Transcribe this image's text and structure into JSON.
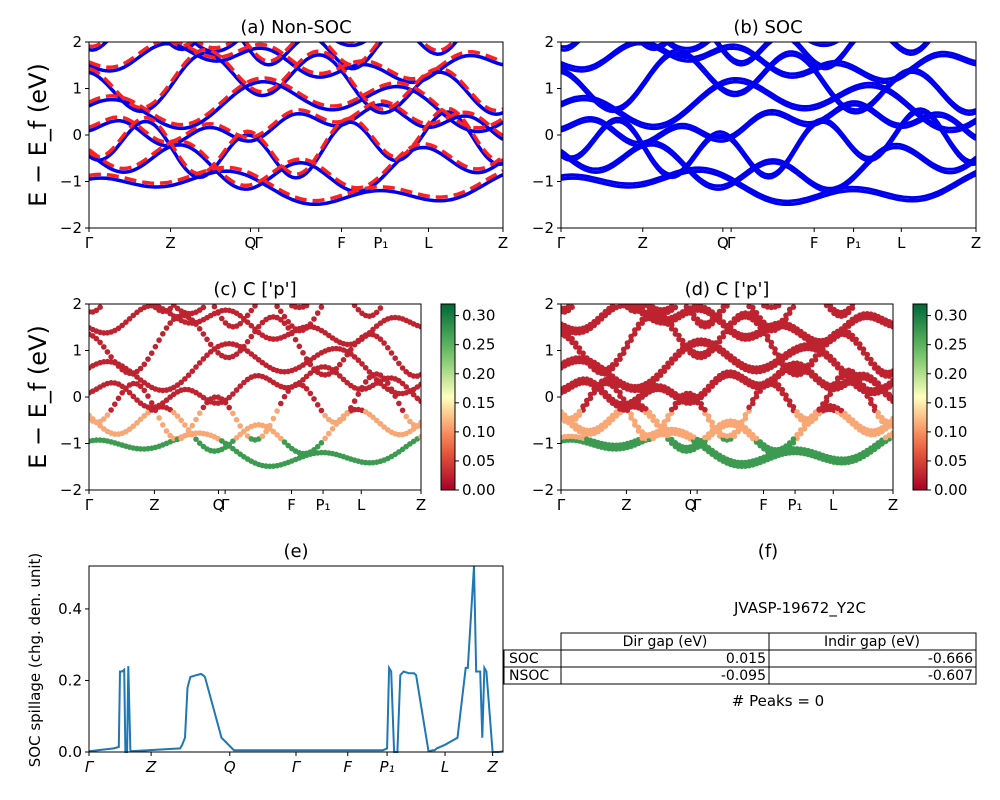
{
  "chart_data": [
    {
      "type": "line",
      "title": "(a) Non-SOC",
      "ylabel": "E − E_f (eV)",
      "ylim": [
        -2,
        2
      ],
      "yticks": [
        "2",
        "1",
        "0",
        "−1",
        "−2"
      ],
      "kpath": [
        "Γ",
        "Z",
        "Q",
        "Γ",
        "F",
        "P₁",
        "L",
        "Z"
      ],
      "kpos": [
        0,
        0.197,
        0.39,
        0.41,
        0.61,
        0.705,
        0.82,
        1.0
      ],
      "series": [
        {
          "color": "#0000ee",
          "style": "solid"
        },
        {
          "color": "#ff2020",
          "style": "dashed"
        }
      ]
    },
    {
      "type": "line",
      "title": "(b) SOC",
      "ylim": [
        -2,
        2
      ],
      "yticks": [
        "2",
        "1",
        "0",
        "−1",
        "−2"
      ],
      "kpath": [
        "Γ",
        "Z",
        "Q",
        "Γ",
        "F",
        "P₁",
        "L",
        "Z"
      ],
      "kpos": [
        0,
        0.197,
        0.39,
        0.41,
        0.61,
        0.705,
        0.82,
        1.0
      ],
      "series": [
        {
          "color": "#0000ee",
          "style": "solid"
        }
      ]
    },
    {
      "type": "scatter",
      "title": "(c)  C ['p']",
      "ylabel": "E − E_f (eV)",
      "ylim": [
        -2,
        2
      ],
      "yticks": [
        "2",
        "1",
        "0",
        "−1",
        "−2"
      ],
      "kpath": [
        "Γ",
        "Z",
        "Q",
        "Γ",
        "F",
        "P₁",
        "L",
        "Z"
      ],
      "kpos": [
        0,
        0.197,
        0.39,
        0.41,
        0.61,
        0.705,
        0.82,
        1.0
      ],
      "colorbar": {
        "ticks": [
          "0.30",
          "0.25",
          "0.20",
          "0.15",
          "0.10",
          "0.05",
          "0.00"
        ],
        "range": [
          0,
          0.32
        ]
      }
    },
    {
      "type": "scatter",
      "title": "(d) C ['p']",
      "ylim": [
        -2,
        2
      ],
      "yticks": [
        "2",
        "1",
        "0",
        "−1",
        "−2"
      ],
      "kpath": [
        "Γ",
        "Z",
        "Q",
        "Γ",
        "F",
        "P₁",
        "L",
        "Z"
      ],
      "kpos": [
        0,
        0.197,
        0.39,
        0.41,
        0.61,
        0.705,
        0.82,
        1.0
      ],
      "colorbar": {
        "ticks": [
          "0.30",
          "0.25",
          "0.20",
          "0.15",
          "0.10",
          "0.05",
          "0.00"
        ],
        "range": [
          0,
          0.32
        ]
      }
    },
    {
      "type": "line",
      "title": "(e)",
      "ylabel": "SOC spillage (chg. den. unit)",
      "ylim": [
        0,
        0.52
      ],
      "yticks": [
        "0.4",
        "0.2",
        "0.0"
      ],
      "kpath": [
        "Γ",
        "Z",
        "Q",
        "Γ",
        "F",
        "P₁",
        "L",
        "Z"
      ],
      "kpos": [
        0,
        0.15,
        0.34,
        0.5,
        0.625,
        0.72,
        0.86,
        0.975
      ],
      "x": [
        0,
        0.06,
        0.072,
        0.075,
        0.08,
        0.085,
        0.088,
        0.092,
        0.095,
        0.1,
        0.22,
        0.225,
        0.232,
        0.238,
        0.245,
        0.26,
        0.27,
        0.275,
        0.28,
        0.32,
        0.35,
        0.65,
        0.71,
        0.72,
        0.725,
        0.73,
        0.737,
        0.745,
        0.752,
        0.76,
        0.773,
        0.778,
        0.785,
        0.79,
        0.82,
        0.83,
        0.835,
        0.84,
        0.86,
        0.89,
        0.91,
        0.915,
        0.93,
        0.935,
        0.935,
        0.945,
        0.95,
        0.955,
        0.96,
        0.975,
        0.99,
        1.0
      ],
      "values": [
        0.002,
        0.01,
        0.014,
        0.225,
        0.225,
        0.23,
        0.0,
        0.0,
        0.24,
        0.002,
        0.01,
        0.02,
        0.04,
        0.18,
        0.21,
        0.215,
        0.218,
        0.215,
        0.21,
        0.04,
        0.005,
        0.005,
        0.005,
        0.01,
        0.235,
        0.225,
        0.0,
        0.0,
        0.215,
        0.225,
        0.22,
        0.22,
        0.22,
        0.215,
        0.002,
        0.005,
        0.005,
        0.01,
        0.02,
        0.04,
        0.235,
        0.235,
        0.52,
        0.235,
        0.225,
        0.225,
        0.04,
        0.235,
        0.225,
        0.0,
        0.0,
        0.002
      ]
    }
  ],
  "info": {
    "title": "(f)",
    "material": "JVASP-19672_Y2C",
    "table": {
      "headers": [
        "",
        "Dir gap (eV)",
        "Indir gap (eV)"
      ],
      "rows": [
        [
          "SOC",
          "0.015",
          "-0.666"
        ],
        [
          "NSOC",
          "-0.095",
          "-0.607"
        ]
      ]
    },
    "peaks": "# Peaks = 0"
  }
}
